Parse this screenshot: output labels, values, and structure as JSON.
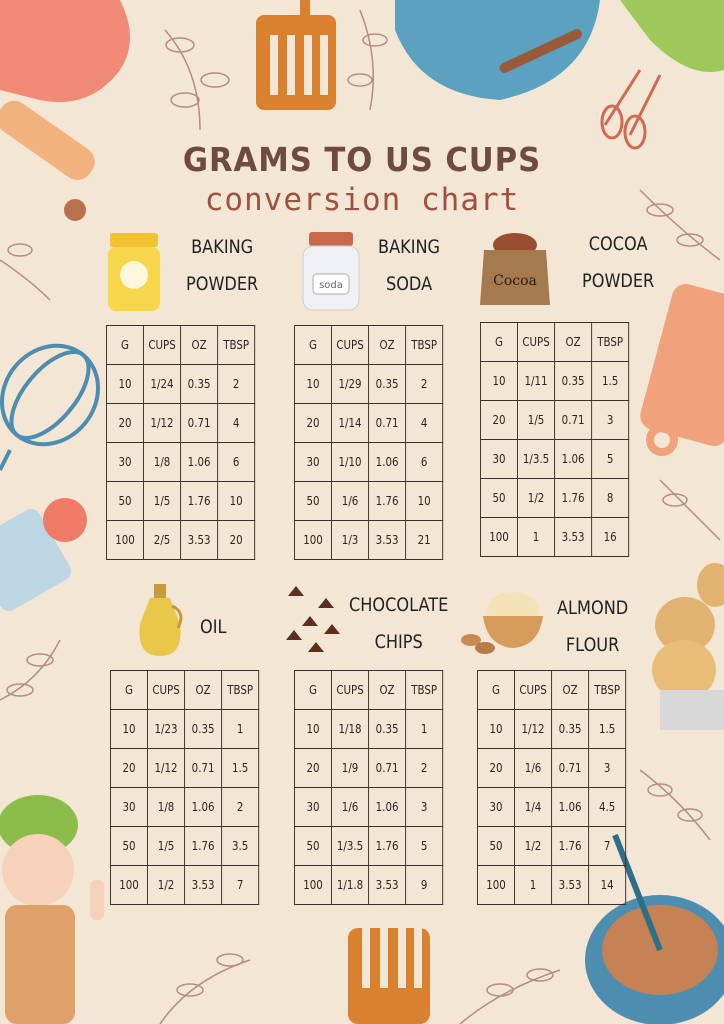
{
  "title": "GRAMS TO US CUPS",
  "subtitle": "conversion chart",
  "columns": [
    "G",
    "CUPS",
    "OZ",
    "TBSP"
  ],
  "ingredients": [
    {
      "name_line1": "BAKING",
      "name_line2": "POWDER",
      "icon": "baking-powder-jar-icon",
      "icon_text": "Baking Powder",
      "rows": [
        [
          "10",
          "1/24",
          "0.35",
          "2"
        ],
        [
          "20",
          "1/12",
          "0.71",
          "4"
        ],
        [
          "30",
          "1/8",
          "1.06",
          "6"
        ],
        [
          "50",
          "1/5",
          "1.76",
          "10"
        ],
        [
          "100",
          "2/5",
          "3.53",
          "20"
        ]
      ]
    },
    {
      "name_line1": "BAKING",
      "name_line2": "SODA",
      "icon": "baking-soda-jar-icon",
      "icon_text": "soda",
      "rows": [
        [
          "10",
          "1/29",
          "0.35",
          "2"
        ],
        [
          "20",
          "1/14",
          "0.71",
          "4"
        ],
        [
          "30",
          "1/10",
          "1.06",
          "6"
        ],
        [
          "50",
          "1/6",
          "1.76",
          "10"
        ],
        [
          "100",
          "1/3",
          "3.53",
          "21"
        ]
      ]
    },
    {
      "name_line1": "COCOA",
      "name_line2": "POWDER",
      "icon": "cocoa-sack-icon",
      "icon_text": "Cocoa",
      "rows": [
        [
          "10",
          "1/11",
          "0.35",
          "1.5"
        ],
        [
          "20",
          "1/5",
          "0.71",
          "3"
        ],
        [
          "30",
          "1/3.5",
          "1.06",
          "5"
        ],
        [
          "50",
          "1/2",
          "1.76",
          "8"
        ],
        [
          "100",
          "1",
          "3.53",
          "16"
        ]
      ]
    },
    {
      "name_line1": "OIL",
      "name_line2": "",
      "icon": "oil-bottle-icon",
      "rows": [
        [
          "10",
          "1/23",
          "0.35",
          "1"
        ],
        [
          "20",
          "1/12",
          "0.71",
          "1.5"
        ],
        [
          "30",
          "1/8",
          "1.06",
          "2"
        ],
        [
          "50",
          "1/5",
          "1.76",
          "3.5"
        ],
        [
          "100",
          "1/2",
          "3.53",
          "7"
        ]
      ]
    },
    {
      "name_line1": "CHOCOLATE",
      "name_line2": "CHIPS",
      "icon": "chocolate-chips-icon",
      "rows": [
        [
          "10",
          "1/18",
          "0.35",
          "1"
        ],
        [
          "20",
          "1/9",
          "0.71",
          "2"
        ],
        [
          "30",
          "1/6",
          "1.06",
          "3"
        ],
        [
          "50",
          "1/3.5",
          "1.76",
          "5"
        ],
        [
          "100",
          "1/1.8",
          "3.53",
          "9"
        ]
      ]
    },
    {
      "name_line1": "ALMOND",
      "name_line2": "FLOUR",
      "icon": "almond-flour-bowl-icon",
      "rows": [
        [
          "10",
          "1/12",
          "0.35",
          "1.5"
        ],
        [
          "20",
          "1/6",
          "0.71",
          "3"
        ],
        [
          "30",
          "1/4",
          "1.06",
          "4.5"
        ],
        [
          "50",
          "1/2",
          "1.76",
          "7"
        ],
        [
          "100",
          "1",
          "3.53",
          "14"
        ]
      ]
    }
  ],
  "colors": {
    "background": "#f3e6d5",
    "title": "#6e4a40",
    "subtitle": "#a0503e",
    "grid": "#3a302a"
  }
}
